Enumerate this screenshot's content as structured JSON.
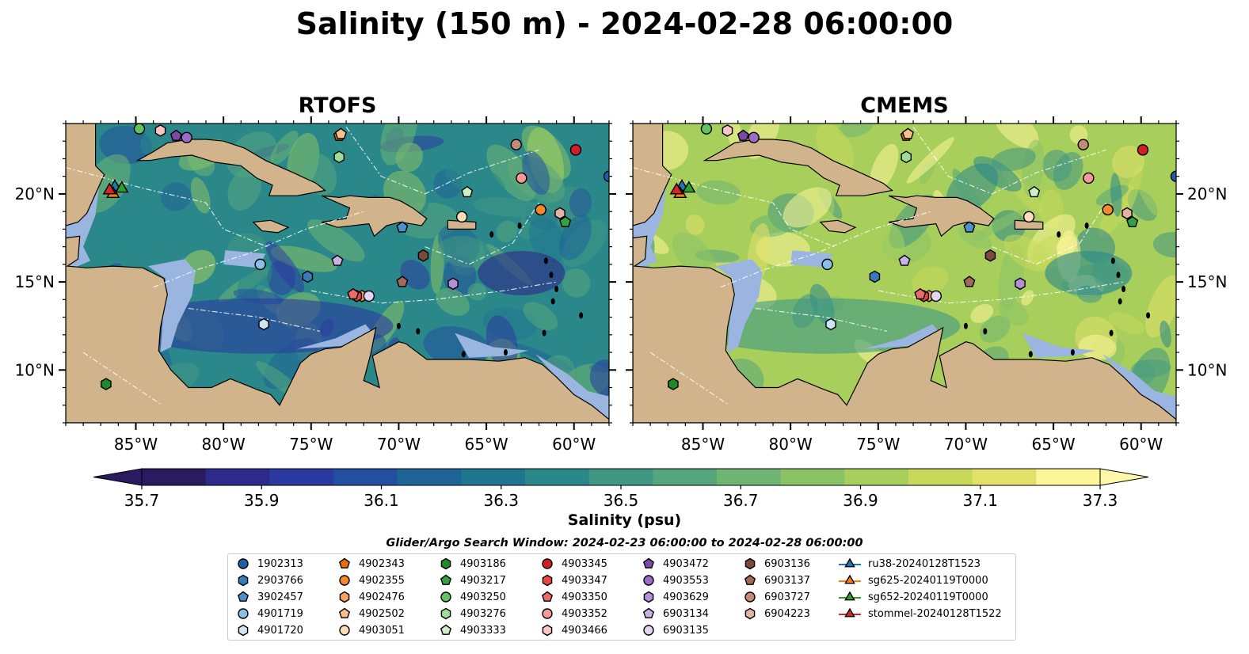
{
  "title": "Salinity (150 m) - 2024-02-28 06:00:00",
  "panels": [
    {
      "title": "RTOFS"
    },
    {
      "title": "CMEMS"
    }
  ],
  "axes": {
    "xticks": [
      "85°W",
      "80°W",
      "75°W",
      "70°W",
      "65°W",
      "60°W"
    ],
    "xtick_values": [
      -85,
      -80,
      -75,
      -70,
      -65,
      -60
    ],
    "yticks": [
      "20°N",
      "15°N",
      "10°N"
    ],
    "ytick_values": [
      20,
      15,
      10
    ],
    "lon_range": [
      -89,
      -58
    ],
    "lat_range": [
      7,
      24
    ]
  },
  "colorbar": {
    "label": "Salinity (psu)",
    "ticks": [
      "35.7",
      "35.9",
      "36.1",
      "36.3",
      "36.5",
      "36.7",
      "36.9",
      "37.1",
      "37.3"
    ],
    "range": [
      35.7,
      37.3
    ],
    "extend": "both",
    "colors": [
      "#2a1a60",
      "#2e2a8a",
      "#2b3aa0",
      "#22509e",
      "#1f6497",
      "#1f7690",
      "#2a878a",
      "#3f9784",
      "#55a67c",
      "#6eb572",
      "#8ac366",
      "#a8cf5c",
      "#c6d95a",
      "#e2e26a",
      "#fdf59a"
    ]
  },
  "colors": {
    "land": "#d2b48c",
    "shallow_water": "#9ab5e0",
    "deep_ocean": "#2a1a60",
    "grid_lines": "#ffffff"
  },
  "search_window": "Glider/Argo Search Window: 2024-02-23 06:00:00 to 2024-02-28 06:00:00",
  "legend": {
    "columns": [
      [
        {
          "label": "1902313",
          "marker": "circle",
          "color": "#1f5fa8"
        },
        {
          "label": "2903766",
          "marker": "hexagon",
          "color": "#3a7ab8"
        },
        {
          "label": "3902457",
          "marker": "pentagon",
          "color": "#4f8fcc"
        },
        {
          "label": "4901719",
          "marker": "circle",
          "color": "#8bbfe6"
        },
        {
          "label": "4901720",
          "marker": "hexagon",
          "color": "#cde4f5"
        }
      ],
      [
        {
          "label": "4902343",
          "marker": "pentagon",
          "color": "#e86e0c"
        },
        {
          "label": "4902355",
          "marker": "circle",
          "color": "#f5882a"
        },
        {
          "label": "4902476",
          "marker": "hexagon",
          "color": "#f7a35c"
        },
        {
          "label": "4902502",
          "marker": "pentagon",
          "color": "#f9c189"
        },
        {
          "label": "4903051",
          "marker": "circle",
          "color": "#fddcb8"
        }
      ],
      [
        {
          "label": "4903186",
          "marker": "hexagon",
          "color": "#1e8a2a"
        },
        {
          "label": "4903217",
          "marker": "pentagon",
          "color": "#34a244"
        },
        {
          "label": "4903250",
          "marker": "circle",
          "color": "#62c262"
        },
        {
          "label": "4903276",
          "marker": "hexagon",
          "color": "#9edc98"
        },
        {
          "label": "4903333",
          "marker": "pentagon",
          "color": "#ccf0c4"
        }
      ],
      [
        {
          "label": "4903345",
          "marker": "circle",
          "color": "#d21f26"
        },
        {
          "label": "4903347",
          "marker": "hexagon",
          "color": "#e34848"
        },
        {
          "label": "4903350",
          "marker": "pentagon",
          "color": "#ee6a6a"
        },
        {
          "label": "4903352",
          "marker": "circle",
          "color": "#f59a96"
        },
        {
          "label": "4903466",
          "marker": "hexagon",
          "color": "#fcc6c2"
        }
      ],
      [
        {
          "label": "4903472",
          "marker": "pentagon",
          "color": "#7b4aa8"
        },
        {
          "label": "4903553",
          "marker": "circle",
          "color": "#9b6cc4"
        },
        {
          "label": "4903629",
          "marker": "hexagon",
          "color": "#b28fd6"
        },
        {
          "label": "6903134",
          "marker": "pentagon",
          "color": "#cbb2e6"
        },
        {
          "label": "6903135",
          "marker": "circle",
          "color": "#e3d4f4"
        }
      ],
      [
        {
          "label": "6903136",
          "marker": "hexagon",
          "color": "#7b4a3c"
        },
        {
          "label": "6903137",
          "marker": "pentagon",
          "color": "#a06a5a"
        },
        {
          "label": "6903727",
          "marker": "circle",
          "color": "#c48a78"
        },
        {
          "label": "6904223",
          "marker": "hexagon",
          "color": "#e0b4a4"
        }
      ],
      [
        {
          "label": "ru38-20240128T1523",
          "marker": "triangle-line",
          "color": "#1f77b4"
        },
        {
          "label": "sg625-20240119T0000",
          "marker": "triangle-line",
          "color": "#ff7f0e"
        },
        {
          "label": "sg652-20240119T0000",
          "marker": "triangle-line",
          "color": "#2ca02c"
        },
        {
          "label": "stommel-20240128T1522",
          "marker": "triangle-line",
          "color": "#d62728"
        }
      ]
    ]
  },
  "chart_data": {
    "type": "heatmap",
    "title": "Salinity (150 m) - 2024-02-28 06:00:00",
    "subplots": [
      "RTOFS",
      "CMEMS"
    ],
    "variable": "Salinity (psu)",
    "depth": "150 m",
    "x_range": [
      -89,
      -58
    ],
    "y_range": [
      7,
      24
    ],
    "color_range": [
      35.7,
      37.3
    ],
    "typical_value": {
      "RTOFS": 36.4,
      "CMEMS": 36.9
    },
    "markers": [
      {
        "id": "1902313",
        "lon": -58.0,
        "lat": 21.0
      },
      {
        "id": "2903766",
        "lon": -75.2,
        "lat": 15.3
      },
      {
        "id": "3902457",
        "lon": -69.8,
        "lat": 18.1
      },
      {
        "id": "4901719",
        "lon": -77.9,
        "lat": 16.0
      },
      {
        "id": "4901720",
        "lon": -77.7,
        "lat": 12.6
      },
      {
        "id": "4902343",
        "lon": -73.4,
        "lat": 23.3
      },
      {
        "id": "4902355",
        "lon": -61.9,
        "lat": 19.1
      },
      {
        "id": "4902476",
        "lon": -72.1,
        "lat": 14.2
      },
      {
        "id": "4902502",
        "lon": -73.3,
        "lat": 23.4
      },
      {
        "id": "4903051",
        "lon": -66.4,
        "lat": 18.7
      },
      {
        "id": "4903186",
        "lon": -86.7,
        "lat": 9.2
      },
      {
        "id": "4903217",
        "lon": -60.5,
        "lat": 18.4
      },
      {
        "id": "4903250",
        "lon": -84.8,
        "lat": 23.7
      },
      {
        "id": "4903276",
        "lon": -73.4,
        "lat": 22.1
      },
      {
        "id": "4903333",
        "lon": -66.1,
        "lat": 20.1
      },
      {
        "id": "4903345",
        "lon": -59.9,
        "lat": 22.5
      },
      {
        "id": "4903347",
        "lon": -72.4,
        "lat": 14.2
      },
      {
        "id": "4903350",
        "lon": -72.6,
        "lat": 14.3
      },
      {
        "id": "4903352",
        "lon": -63.0,
        "lat": 20.9
      },
      {
        "id": "4903466",
        "lon": -83.6,
        "lat": 23.6
      },
      {
        "id": "4903472",
        "lon": -82.7,
        "lat": 23.3
      },
      {
        "id": "4903553",
        "lon": -82.1,
        "lat": 23.2
      },
      {
        "id": "4903629",
        "lon": -66.9,
        "lat": 14.9
      },
      {
        "id": "6903134",
        "lon": -73.5,
        "lat": 16.2
      },
      {
        "id": "6903135",
        "lon": -71.7,
        "lat": 14.2
      },
      {
        "id": "6903136",
        "lon": -68.6,
        "lat": 16.5
      },
      {
        "id": "6903137",
        "lon": -69.8,
        "lat": 15.0
      },
      {
        "id": "6903727",
        "lon": -63.3,
        "lat": 22.8
      },
      {
        "id": "6904223",
        "lon": -60.8,
        "lat": 18.9
      },
      {
        "id": "ru38-20240128T1523",
        "lon": -86.2,
        "lat": 20.4
      },
      {
        "id": "sg625-20240119T0000",
        "lon": -86.3,
        "lat": 20.0
      },
      {
        "id": "sg652-20240119T0000",
        "lon": -85.8,
        "lat": 20.3
      },
      {
        "id": "stommel-20240128T1522",
        "lon": -86.5,
        "lat": 20.2
      }
    ]
  }
}
